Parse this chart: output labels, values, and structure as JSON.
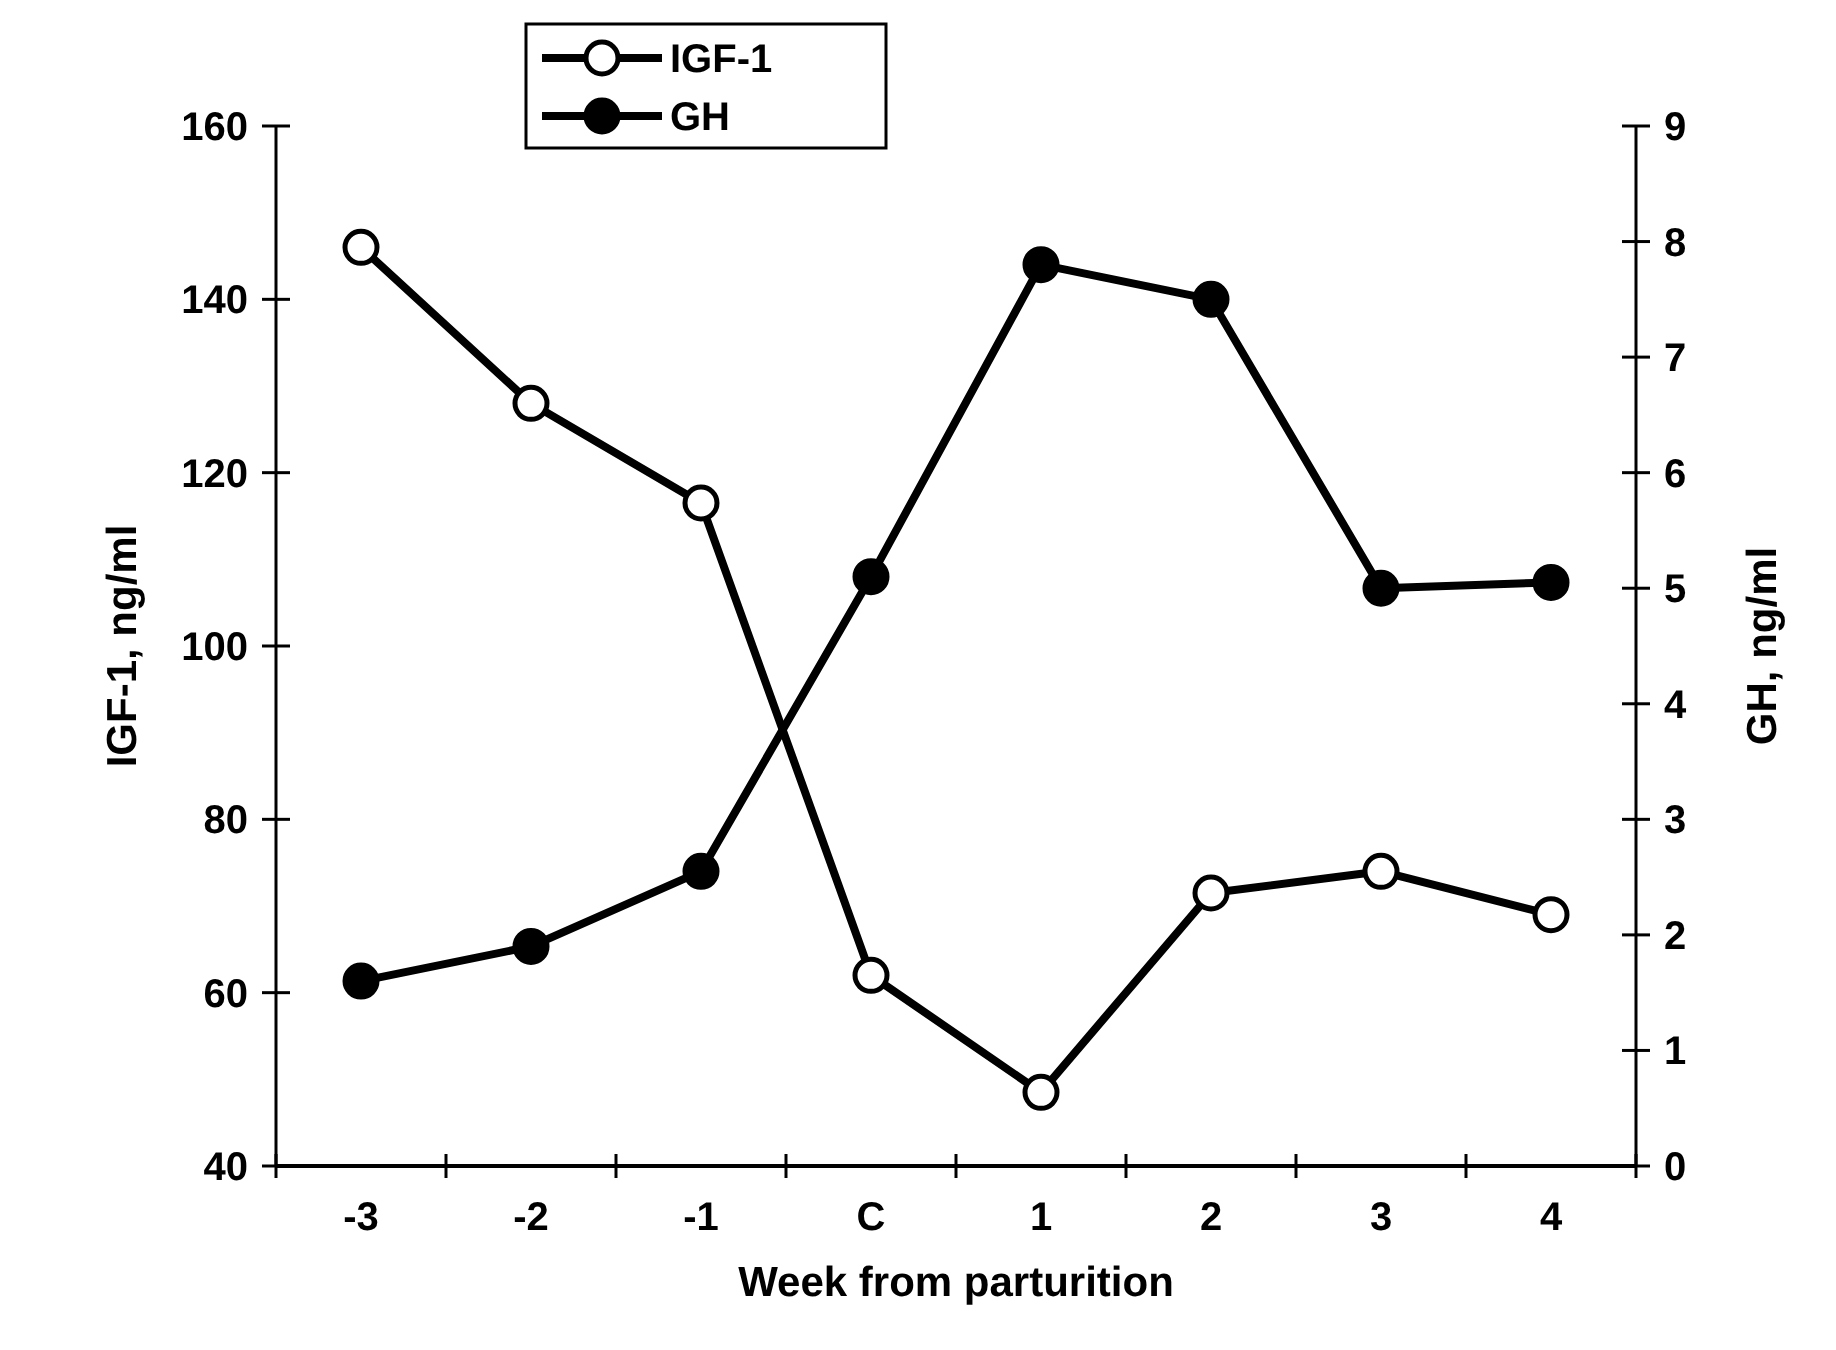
{
  "chart_data": {
    "type": "line",
    "xlabel": "Week from parturition",
    "ylabel": "IGF-1, ng/ml",
    "y2label": "GH, ng/ml",
    "categories": [
      "-3",
      "-2",
      "-1",
      "C",
      "1",
      "2",
      "3",
      "4"
    ],
    "series": [
      {
        "name": "IGF-1",
        "color": "#000000",
        "marker": "circle",
        "values": [
          146,
          128,
          116.5,
          62,
          48.5,
          71.5,
          74,
          69
        ]
      },
      {
        "name": "GH",
        "color": "#000000",
        "marker": "circle",
        "axis": "y2",
        "values": [
          1.6,
          1.9,
          2.55,
          5.1,
          7.8,
          7.5,
          5.0,
          5.05
        ]
      }
    ],
    "ylim": [
      40,
      160
    ],
    "yticks": [
      40,
      60,
      80,
      100,
      120,
      140,
      160
    ],
    "y2lim": [
      0,
      9
    ],
    "y2ticks": [
      0,
      1,
      2,
      3,
      4,
      5,
      6,
      7,
      8,
      9
    ],
    "legend": "top",
    "grid": false,
    "line_style": "solid"
  }
}
